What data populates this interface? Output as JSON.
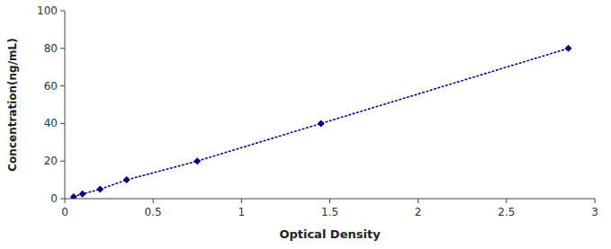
{
  "chart_data": {
    "type": "line",
    "xlabel": "Optical Density",
    "ylabel": "Concentration(ng/mL)",
    "x": [
      0.05,
      0.1,
      0.2,
      0.35,
      0.75,
      1.45,
      2.85
    ],
    "values": [
      1,
      2.5,
      5,
      10,
      20,
      40,
      80
    ],
    "color": "#00008B",
    "marker": "diamond",
    "line_style": "dotted",
    "xlim": [
      0,
      3
    ],
    "ylim": [
      0,
      100
    ],
    "xticks": [
      0,
      0.5,
      1,
      1.5,
      2,
      2.5,
      3
    ],
    "yticks": [
      0,
      20,
      40,
      60,
      80,
      100
    ],
    "grid": false
  }
}
